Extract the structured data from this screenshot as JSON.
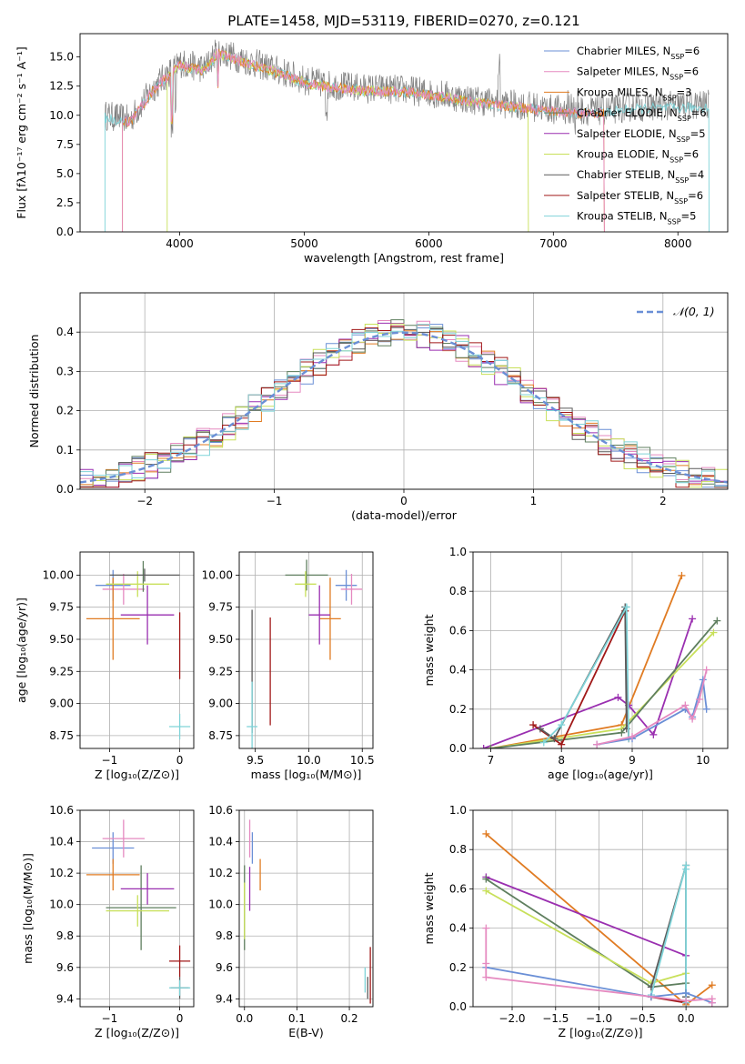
{
  "figure": {
    "title": "PLATE=1458, MJD=53119, FIBERID=0270, z=0.121"
  },
  "colors": {
    "Chabrier MILES": "#6a8fd6",
    "Salpeter MILES": "#e58ac0",
    "Kroupa MILES": "#e07b22",
    "Chabrier ELODIE": "#5f7f5f",
    "Salpeter ELODIE": "#9a2fb0",
    "Kroupa ELODIE": "#c8e05a",
    "Chabrier STELIB": "#5a5a5a",
    "Salpeter STELIB": "#a01818",
    "Kroupa STELIB": "#7fd3d8",
    "normal": "#6a8fd6"
  },
  "chart_data": [
    {
      "id": "spectrum",
      "type": "line",
      "title": "PLATE=1458, MJD=53119, FIBERID=0270, z=0.121",
      "xlabel": "wavelength [Angstrom, rest frame]",
      "ylabel": "Flux [fλ10⁻¹⁷ erg cm⁻² s⁻¹ A⁻¹]",
      "xlim": [
        3200,
        8400
      ],
      "ylim": [
        0,
        17
      ],
      "xticks": [
        4000,
        5000,
        6000,
        7000,
        8000
      ],
      "yticks": [
        0.0,
        2.5,
        5.0,
        7.5,
        10.0,
        12.5,
        15.0
      ],
      "legend": "upper-right",
      "series": [
        {
          "name": "Chabrier MILES",
          "nssp": "6"
        },
        {
          "name": "Salpeter MILES",
          "nssp": "6"
        },
        {
          "name": "Kroupa MILES",
          "nssp": "3"
        },
        {
          "name": "Chabrier ELODIE",
          "nssp": "6"
        },
        {
          "name": "Salpeter ELODIE",
          "nssp": "5"
        },
        {
          "name": "Kroupa ELODIE",
          "nssp": "6"
        },
        {
          "name": "Chabrier STELIB",
          "nssp": "4"
        },
        {
          "name": "Salpeter STELIB",
          "nssp": "6"
        },
        {
          "name": "Kroupa STELIB",
          "nssp": "5"
        }
      ],
      "observed_x": [
        3400,
        3600,
        3800,
        3900,
        4000,
        4200,
        4300,
        4500,
        4800,
        5000,
        5200,
        5500,
        5800,
        6100,
        6300,
        6600,
        6800,
        7000,
        7200,
        7400,
        7600,
        7800,
        8000,
        8200
      ],
      "observed_y": [
        10,
        9.6,
        12.5,
        13.5,
        14.5,
        14.0,
        15.5,
        14.8,
        13.8,
        13.0,
        12.6,
        12.3,
        12.2,
        11.8,
        11.4,
        11.0,
        10.8,
        10.5,
        10.4,
        10.4,
        10.7,
        10.8,
        10.8,
        10.9
      ]
    },
    {
      "id": "residuals",
      "type": "line",
      "xlabel": "(data-model)/error",
      "ylabel": "Normed distribution",
      "xlim": [
        -2.5,
        2.5
      ],
      "ylim": [
        0,
        0.5
      ],
      "xticks": [
        -2,
        -1,
        0,
        1,
        2
      ],
      "yticks": [
        0.0,
        0.1,
        0.2,
        0.3,
        0.4
      ],
      "legend": "upper-right",
      "legend_label": "𝒩(0, 1)",
      "grid": true
    },
    {
      "id": "age-Z",
      "type": "scatter",
      "xlabel": "Z [log₁₀(Z/Z⊙)]",
      "ylabel": "age  [log₁₀(age/yr)]",
      "xlim": [
        -1.42,
        0.2
      ],
      "ylim": [
        8.65,
        10.18
      ],
      "xticks": [
        -1,
        0
      ],
      "yticks": [
        8.75,
        9.0,
        9.25,
        9.5,
        9.75,
        10.0
      ],
      "grid": true,
      "points": [
        {
          "s": "Chabrier MILES",
          "x": -0.95,
          "y": 9.92,
          "xe": 0.25,
          "ye": 0.12
        },
        {
          "s": "Salpeter MILES",
          "x": -0.8,
          "y": 9.89,
          "xe": 0.3,
          "ye": 0.12
        },
        {
          "s": "Kroupa MILES",
          "x": -0.95,
          "y": 9.66,
          "xe": 0.38,
          "ye": 0.32
        },
        {
          "s": "Chabrier ELODIE",
          "x": -0.52,
          "y": 9.99,
          "xe": 0.0,
          "ye": 0.12
        },
        {
          "s": "Salpeter ELODIE",
          "x": -0.46,
          "y": 9.69,
          "xe": 0.38,
          "ye": 0.23
        },
        {
          "s": "Kroupa ELODIE",
          "x": -0.6,
          "y": 9.93,
          "xe": 0.45,
          "ye": 0.1
        },
        {
          "s": "Chabrier STELIB",
          "x": -0.5,
          "y": 10.0,
          "xe": 0.5,
          "ye": 0.05
        },
        {
          "s": "Salpeter STELIB",
          "x": 0.0,
          "y": 9.45,
          "xe": 0.0,
          "ye": 0.26
        },
        {
          "s": "Kroupa STELIB",
          "x": 0.0,
          "y": 8.82,
          "xe": 0.15,
          "ye": 0.1
        }
      ]
    },
    {
      "id": "age-mass",
      "type": "scatter",
      "xlabel": "mass [log₁₀(M/M⊙)]",
      "xlim": [
        9.35,
        10.6
      ],
      "ylim": [
        8.65,
        10.18
      ],
      "xticks": [
        9.5,
        10.0,
        10.5
      ],
      "yticks": [
        8.75,
        9.0,
        9.25,
        9.5,
        9.75,
        10.0
      ],
      "grid": true,
      "points": [
        {
          "s": "Chabrier MILES",
          "x": 10.35,
          "y": 9.92,
          "xe": 0.1,
          "ye": 0.12
        },
        {
          "s": "Salpeter MILES",
          "x": 10.4,
          "y": 9.89,
          "xe": 0.1,
          "ye": 0.12
        },
        {
          "s": "Kroupa MILES",
          "x": 10.2,
          "y": 9.66,
          "xe": 0.1,
          "ye": 0.32
        },
        {
          "s": "Chabrier ELODIE",
          "x": 9.98,
          "y": 10.0,
          "xe": 0.2,
          "ye": 0.12
        },
        {
          "s": "Salpeter ELODIE",
          "x": 10.1,
          "y": 9.69,
          "xe": 0.1,
          "ye": 0.23
        },
        {
          "s": "Kroupa ELODIE",
          "x": 9.97,
          "y": 9.93,
          "xe": 0.1,
          "ye": 0.1
        },
        {
          "s": "Chabrier STELIB",
          "x": 9.47,
          "y": 9.25,
          "xe": 0.0,
          "ye": 0.48
        },
        {
          "s": "Salpeter STELIB",
          "x": 9.64,
          "y": 9.25,
          "xe": 0.0,
          "ye": 0.42
        },
        {
          "s": "Kroupa STELIB",
          "x": 9.47,
          "y": 8.82,
          "xe": 0.05,
          "ye": 0.35
        }
      ]
    },
    {
      "id": "mass-Z",
      "type": "scatter",
      "xlabel": "Z [log₁₀(Z/Z⊙)]",
      "ylabel": "mass [log₁₀(M/M⊙)]",
      "xlim": [
        -1.42,
        0.2
      ],
      "ylim": [
        9.35,
        10.6
      ],
      "xticks": [
        -1,
        0
      ],
      "yticks": [
        9.4,
        9.6,
        9.8,
        10.0,
        10.2,
        10.4,
        10.6
      ],
      "grid": true,
      "points": [
        {
          "s": "Chabrier MILES",
          "x": -0.95,
          "y": 10.36,
          "xe": 0.3,
          "ye": 0.1
        },
        {
          "s": "Salpeter MILES",
          "x": -0.8,
          "y": 10.42,
          "xe": 0.3,
          "ye": 0.12
        },
        {
          "s": "Kroupa MILES",
          "x": -0.95,
          "y": 10.19,
          "xe": 0.38,
          "ye": 0.1
        },
        {
          "s": "Chabrier ELODIE",
          "x": -0.55,
          "y": 9.98,
          "xe": 0.5,
          "ye": 0.27
        },
        {
          "s": "Salpeter ELODIE",
          "x": -0.46,
          "y": 10.1,
          "xe": 0.38,
          "ye": 0.1
        },
        {
          "s": "Kroupa ELODIE",
          "x": -0.6,
          "y": 9.96,
          "xe": 0.45,
          "ye": 0.1
        },
        {
          "s": "Chabrier STELIB",
          "x": 0.0,
          "y": 9.47,
          "xe": 0.13,
          "ye": 0.07
        },
        {
          "s": "Salpeter STELIB",
          "x": 0.0,
          "y": 9.64,
          "xe": 0.15,
          "ye": 0.1
        },
        {
          "s": "Kroupa STELIB",
          "x": 0.0,
          "y": 9.47,
          "xe": 0.15,
          "ye": 0.05
        }
      ]
    },
    {
      "id": "mass-ebv",
      "type": "scatter",
      "xlabel": "E(B-V)",
      "xlim": [
        -0.01,
        0.245
      ],
      "ylim": [
        9.35,
        10.6
      ],
      "xticks": [
        0.0,
        0.1,
        0.2
      ],
      "yticks": [
        9.4,
        9.6,
        9.8,
        10.0,
        10.2,
        10.4,
        10.6
      ],
      "grid": true,
      "points": [
        {
          "s": "Chabrier MILES",
          "x": 0.015,
          "y": 10.36,
          "xe": 0.0,
          "ye": 0.1
        },
        {
          "s": "Salpeter MILES",
          "x": 0.01,
          "y": 10.42,
          "xe": 0.0,
          "ye": 0.12
        },
        {
          "s": "Kroupa MILES",
          "x": 0.03,
          "y": 10.19,
          "xe": 0.0,
          "ye": 0.1
        },
        {
          "s": "Chabrier ELODIE",
          "x": 0.0,
          "y": 9.98,
          "xe": 0.0,
          "ye": 0.27
        },
        {
          "s": "Salpeter ELODIE",
          "x": 0.01,
          "y": 10.1,
          "xe": 0.0,
          "ye": 0.14
        },
        {
          "s": "Kroupa ELODIE",
          "x": 0.0,
          "y": 9.96,
          "xe": 0.0,
          "ye": 0.18
        },
        {
          "s": "Chabrier STELIB",
          "x": 0.235,
          "y": 9.47,
          "xe": 0.0,
          "ye": 0.07
        },
        {
          "s": "Salpeter STELIB",
          "x": 0.24,
          "y": 9.55,
          "xe": 0.0,
          "ye": 0.18
        },
        {
          "s": "Kroupa STELIB",
          "x": 0.23,
          "y": 9.52,
          "xe": 0.0,
          "ye": 0.08
        }
      ]
    },
    {
      "id": "weight-age",
      "type": "line",
      "xlabel": "age  [log₁₀(age/yr)]",
      "ylabel": "mass weight",
      "xlim": [
        6.75,
        10.35
      ],
      "ylim": [
        0,
        1
      ],
      "xticks": [
        7,
        8,
        9,
        10
      ],
      "yticks": [
        0.0,
        0.2,
        0.4,
        0.6,
        0.8,
        1.0
      ],
      "grid": true,
      "series": [
        {
          "s": "Kroupa MILES",
          "x": [
            7.0,
            8.85,
            9.7
          ],
          "y": [
            0.0,
            0.12,
            0.88
          ]
        },
        {
          "s": "Salpeter ELODIE",
          "x": [
            6.9,
            8.8,
            8.95,
            9.3,
            9.85
          ],
          "y": [
            0.0,
            0.26,
            0.22,
            0.07,
            0.66
          ]
        },
        {
          "s": "Kroupa ELODIE",
          "x": [
            7.0,
            8.85,
            10.15
          ],
          "y": [
            0.0,
            0.1,
            0.59
          ]
        },
        {
          "s": "Chabrier ELODIE",
          "x": [
            7.0,
            8.85,
            10.2
          ],
          "y": [
            0.0,
            0.08,
            0.65
          ]
        },
        {
          "s": "Salpeter STELIB",
          "x": [
            7.6,
            8.0,
            8.9,
            8.95
          ],
          "y": [
            0.12,
            0.02,
            0.7,
            0.05
          ]
        },
        {
          "s": "Chabrier STELIB",
          "x": [
            7.7,
            7.9,
            8.9,
            8.92
          ],
          "y": [
            0.1,
            0.05,
            0.72,
            0.1
          ]
        },
        {
          "s": "Kroupa STELIB",
          "x": [
            7.75,
            8.0,
            8.92,
            8.95
          ],
          "y": [
            0.03,
            0.12,
            0.72,
            0.05
          ]
        },
        {
          "s": "Chabrier MILES",
          "x": [
            8.5,
            9.0,
            9.75,
            9.85,
            10.0,
            10.05
          ],
          "y": [
            0.02,
            0.05,
            0.2,
            0.16,
            0.35,
            0.2
          ]
        },
        {
          "s": "Salpeter MILES",
          "x": [
            8.5,
            9.0,
            9.75,
            9.85,
            9.95,
            10.05
          ],
          "y": [
            0.02,
            0.06,
            0.22,
            0.15,
            0.25,
            0.4
          ]
        }
      ]
    },
    {
      "id": "weight-Z",
      "type": "line",
      "xlabel": "Z [log₁₀(Z/Z⊙)]",
      "ylabel": "mass weight",
      "xlim": [
        -2.45,
        0.48
      ],
      "ylim": [
        0,
        1
      ],
      "xticks": [
        -2.0,
        -1.5,
        -1.0,
        -0.5,
        0.0
      ],
      "yticks": [
        0.0,
        0.2,
        0.4,
        0.6,
        0.8,
        1.0
      ],
      "grid": true,
      "series": [
        {
          "s": "Kroupa MILES",
          "x": [
            -2.3,
            0.0,
            0.3
          ],
          "y": [
            0.88,
            0.01,
            0.11
          ]
        },
        {
          "s": "Salpeter ELODIE",
          "x": [
            -2.3,
            0.0
          ],
          "y": [
            0.66,
            0.26
          ]
        },
        {
          "s": "Chabrier ELODIE",
          "x": [
            -2.3,
            -0.4,
            0.0,
            0.0
          ],
          "y": [
            0.65,
            0.1,
            0.12,
            0.05
          ]
        },
        {
          "s": "Kroupa ELODIE",
          "x": [
            -2.3,
            -0.4,
            0.0
          ],
          "y": [
            0.59,
            0.12,
            0.17
          ]
        },
        {
          "s": "Chabrier STELIB",
          "x": [
            -0.4,
            0.0,
            0.0
          ],
          "y": [
            0.1,
            0.72,
            0.05
          ]
        },
        {
          "s": "Salpeter STELIB",
          "x": [
            -0.4,
            0.0
          ],
          "y": [
            0.05,
            0.02
          ]
        },
        {
          "s": "Kroupa STELIB",
          "x": [
            -0.4,
            0.0,
            0.0,
            0.0
          ],
          "y": [
            0.06,
            0.72,
            0.02,
            0.7
          ]
        },
        {
          "s": "Chabrier MILES",
          "x": [
            -2.3,
            -0.4,
            0.0,
            0.3
          ],
          "y": [
            0.2,
            0.05,
            0.07,
            0.02
          ]
        },
        {
          "s": "Salpeter MILES",
          "x": [
            -2.3,
            -2.3,
            -2.3,
            0.0,
            0.3,
            0.3
          ],
          "y": [
            0.4,
            0.22,
            0.15,
            0.03,
            0.04,
            0.02
          ]
        }
      ]
    }
  ]
}
